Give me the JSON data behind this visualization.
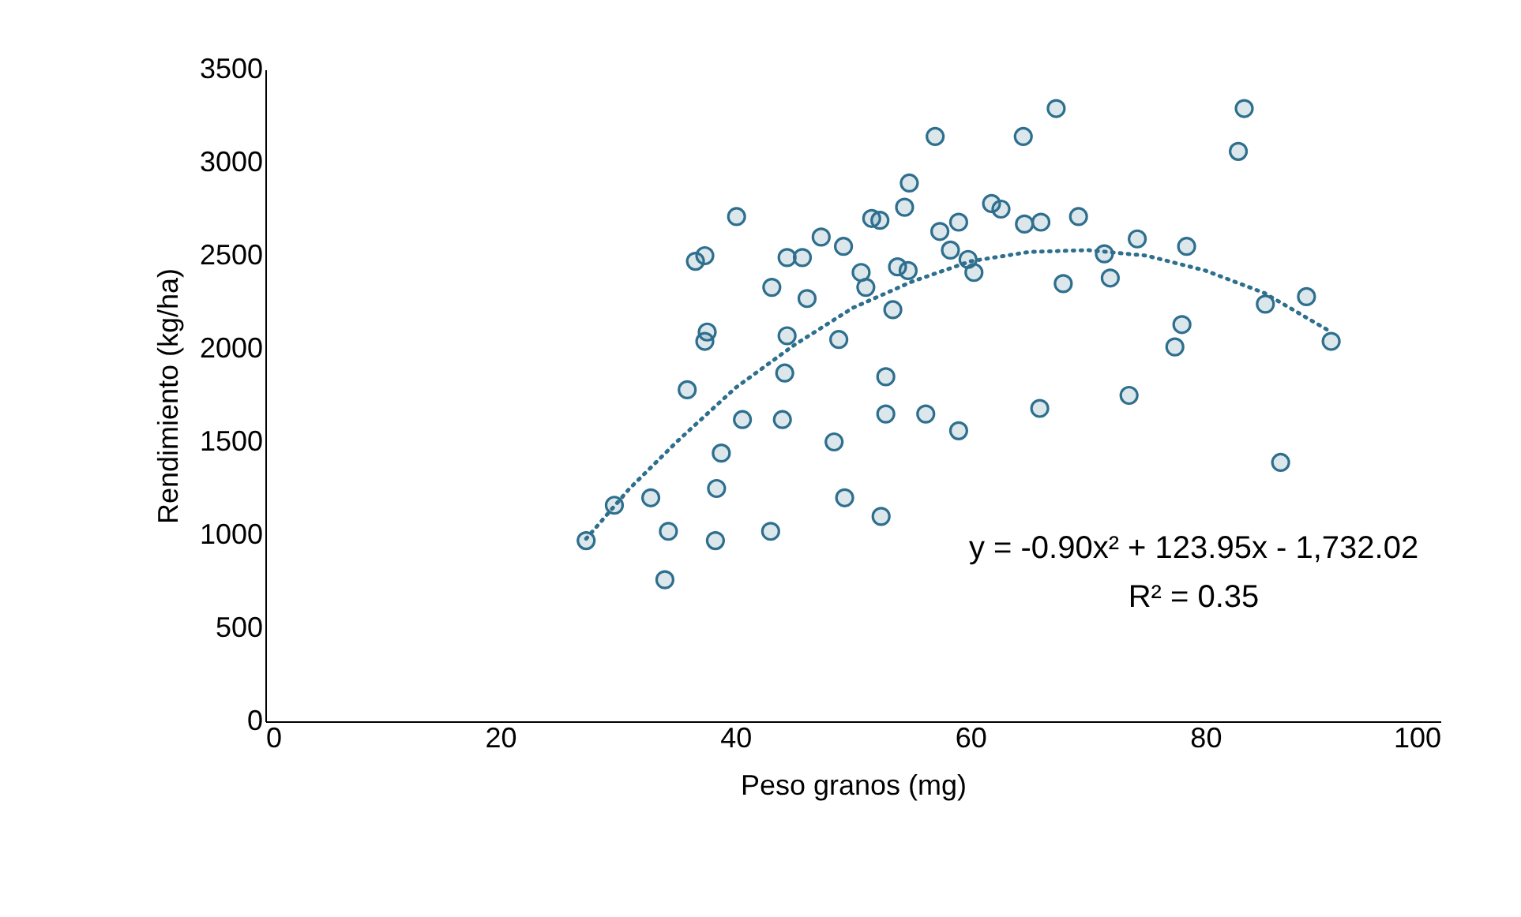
{
  "chart_data": {
    "type": "scatter",
    "xlabel": "Peso granos (mg)",
    "ylabel": "Rendimiento (kg/ha)",
    "xlim": [
      0,
      100
    ],
    "xticks": [
      0,
      20,
      40,
      60,
      80,
      100
    ],
    "ylim": [
      0,
      3500
    ],
    "yticks": [
      0,
      500,
      1000,
      1500,
      2000,
      2500,
      3000,
      3500
    ],
    "grid": false,
    "annotations": [
      "y = -0.90x² + 123.95x - 1,732.02",
      "R² = 0.35"
    ],
    "series": [
      {
        "color": "#2e6f8e",
        "marker": "circle",
        "x": [
          27.3,
          29.7,
          32.8,
          34.3,
          34.0,
          35.9,
          37.4,
          36.6,
          37.6,
          37.4,
          38.3,
          38.4,
          38.8,
          40.1,
          40.6,
          43.0,
          43.1,
          44.0,
          44.2,
          44.4,
          44.4,
          45.7,
          46.1,
          47.3,
          48.4,
          48.8,
          49.2,
          49.3,
          50.7,
          51.1,
          51.6,
          52.3,
          52.4,
          52.8,
          52.8,
          53.4,
          53.8,
          54.7,
          54.4,
          54.8,
          56.2,
          57.0,
          57.4,
          58.3,
          59.0,
          59.0,
          59.8,
          60.3,
          61.8,
          62.6,
          64.5,
          64.6,
          66.0,
          65.9,
          67.3,
          67.9,
          69.2,
          71.4,
          71.9,
          73.5,
          74.2,
          77.4,
          78.0,
          78.4,
          82.8,
          83.3,
          85.1,
          88.6,
          90.7,
          86.4
        ],
        "values": [
          970,
          1160,
          1200,
          1020,
          760,
          1780,
          2500,
          2470,
          2090,
          2040,
          970,
          1250,
          1440,
          2710,
          1620,
          1020,
          2330,
          1620,
          1870,
          2070,
          2490,
          2490,
          2270,
          2600,
          1500,
          2050,
          2550,
          1200,
          2410,
          2330,
          2700,
          2690,
          1100,
          1850,
          1650,
          2210,
          2440,
          2420,
          2760,
          2890,
          1650,
          3140,
          2630,
          2530,
          2680,
          1560,
          2480,
          2410,
          2780,
          2750,
          3140,
          2670,
          2680,
          1680,
          3290,
          2350,
          2710,
          2510,
          2380,
          1750,
          2590,
          2010,
          2130,
          2550,
          3060,
          3290,
          2240,
          2280,
          2040,
          1390
        ]
      },
      {
        "type": "line",
        "color": "#2e6f8e",
        "line_style": "dotted",
        "x": [
          27.3,
          31,
          35,
          40,
          45,
          50,
          55,
          60,
          65,
          70,
          75,
          80,
          85,
          90.7
        ],
        "values": [
          980,
          1250,
          1500,
          1790,
          2020,
          2220,
          2360,
          2470,
          2520,
          2530,
          2500,
          2420,
          2300,
          2090
        ]
      }
    ]
  }
}
